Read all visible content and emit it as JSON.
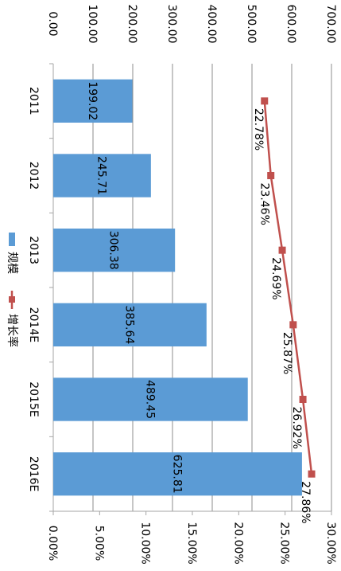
{
  "chart_data": {
    "type": "bar",
    "categories": [
      "2011",
      "2012",
      "2013",
      "2014E",
      "2015E",
      "2016E"
    ],
    "series": [
      {
        "name": "规模",
        "type": "bar",
        "axis": "primary",
        "values": [
          199.02,
          245.71,
          306.38,
          385.64,
          489.45,
          625.81
        ],
        "labels": [
          "199.02",
          "245.71",
          "306.38",
          "385.64",
          "489.45",
          "625.81"
        ],
        "color": "#5b9bd5"
      },
      {
        "name": "增长率",
        "type": "line",
        "axis": "secondary",
        "values": [
          22.78,
          23.46,
          24.69,
          25.87,
          26.92,
          27.86
        ],
        "labels": [
          "22.78%",
          "23.46%",
          "24.69%",
          "25.87%",
          "26.92%",
          "27.86%"
        ],
        "color": "#c0504d"
      }
    ],
    "primary_axis": {
      "range": [
        0,
        700
      ],
      "ticks": [
        "0.00",
        "100.00",
        "200.00",
        "300.00",
        "400.00",
        "500.00",
        "600.00",
        "700.00"
      ]
    },
    "secondary_axis": {
      "range": [
        0,
        30
      ],
      "ticks": [
        "0.00%",
        "5.00%",
        "10.00%",
        "15.00%",
        "20.00%",
        "25.00%",
        "30.00%"
      ]
    },
    "grid": true,
    "legend_position": "bottom-left",
    "orientation": "rotated-90-clockwise"
  }
}
